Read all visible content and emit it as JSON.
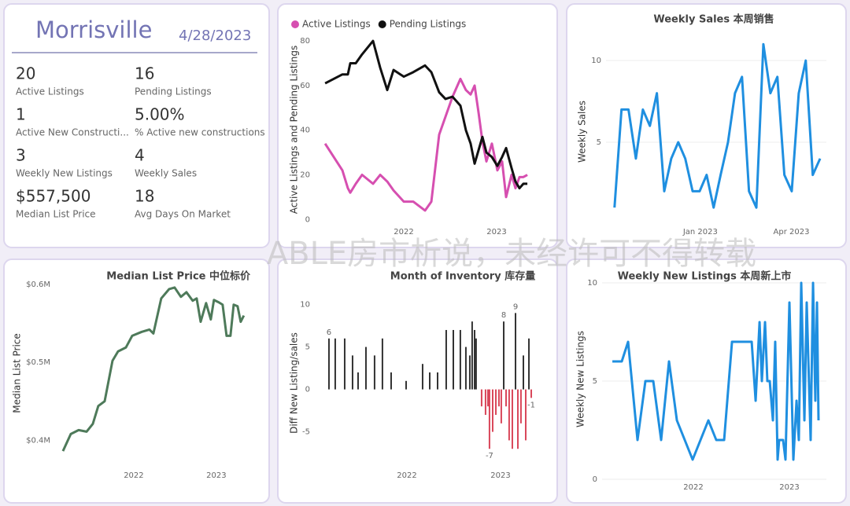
{
  "header": {
    "title": "Morrisville",
    "date": "4/28/2023"
  },
  "kpis": [
    {
      "value": "20",
      "label": "Active Listings"
    },
    {
      "value": "16",
      "label": "Pending Listings"
    },
    {
      "value": "1",
      "label": "Active New Constructi..."
    },
    {
      "value": "5.00%",
      "label": "% Active new constructions"
    },
    {
      "value": "3",
      "label": "Weekly New Listings"
    },
    {
      "value": "4",
      "label": "Weekly Sales"
    },
    {
      "value": "$557,500",
      "label": "Median List Price"
    },
    {
      "value": "18",
      "label": "Avg Days On Market"
    }
  ],
  "watermark": "ABLE房市析说，未经许可不得转载",
  "chart_data": [
    {
      "type": "line",
      "y_label": "Active Listings and Pending Listings",
      "legend": "top-left",
      "grid": false,
      "x": [
        2021.153,
        2021.339,
        2021.398,
        2021.424,
        2021.483,
        2021.551,
        2021.669,
        2021.746,
        2021.822,
        2021.89,
        2022.0,
        2022.102,
        2022.229,
        2022.297,
        2022.381,
        2022.449,
        2022.525,
        2022.61,
        2022.669,
        2022.72,
        2022.763,
        2022.805,
        2022.847,
        2022.89,
        2022.949,
        2023.008,
        2023.059,
        2023.102,
        2023.161,
        2023.203,
        2023.246,
        2023.288,
        2023.331
      ],
      "series": [
        {
          "name": "Active Listings",
          "color": "#d64fb0",
          "values": [
            34,
            22,
            14,
            12,
            16,
            20,
            16,
            20,
            17,
            13,
            8,
            8,
            4,
            8,
            38,
            46,
            55,
            63,
            58,
            56,
            60,
            48,
            35,
            26,
            34,
            22,
            26,
            10,
            20,
            14,
            19,
            19,
            20
          ]
        },
        {
          "name": "Pending Listings",
          "color": "#111111",
          "values": [
            61,
            65,
            65,
            70,
            70,
            74,
            80,
            68,
            58,
            67,
            64,
            66,
            69,
            66,
            57,
            54,
            55,
            51,
            40,
            34,
            25,
            31,
            37,
            30,
            28,
            24,
            28,
            32,
            23,
            17,
            14,
            16,
            16
          ]
        }
      ],
      "xlim": [
        2021.042,
        2023.5
      ],
      "xticks": [
        2022,
        2023
      ],
      "ylim": [
        -2,
        82.5
      ],
      "yticks": [
        0,
        20,
        40,
        60,
        80
      ]
    },
    {
      "type": "line",
      "title": "Weekly Sales 本周销售",
      "y_label": "Weekly Sales",
      "color": "#1f8fe0",
      "grid": true,
      "x": [
        2022.767,
        2022.786,
        2022.805,
        2022.825,
        2022.844,
        2022.863,
        2022.882,
        2022.902,
        2022.921,
        2022.94,
        2022.959,
        2022.979,
        2022.998,
        2023.017,
        2023.036,
        2023.055,
        2023.075,
        2023.094,
        2023.113,
        2023.132,
        2023.152,
        2023.171,
        2023.19,
        2023.209,
        2023.228,
        2023.248,
        2023.267,
        2023.286,
        2023.305,
        2023.325
      ],
      "values": [
        1,
        7,
        7,
        4,
        7,
        6,
        8,
        2,
        4,
        5,
        4,
        2,
        2,
        3,
        1,
        3,
        5,
        8,
        9,
        2,
        1,
        11,
        8,
        9,
        3,
        2,
        8,
        10,
        3,
        4
      ],
      "xlim": [
        2022.744,
        2023.342
      ],
      "xticks": [
        {
          "value": 2023,
          "label": "Jan 2023"
        },
        {
          "value": 2023.247,
          "label": "Apr 2023"
        }
      ],
      "ylim": [
        0,
        11.3
      ],
      "yticks": [
        5,
        10
      ]
    },
    {
      "type": "line",
      "title": "Median List Price  中位标价",
      "y_label": "Median List Price",
      "color": "#4e7a5a",
      "grid": false,
      "x": [
        2021.143,
        2021.238,
        2021.333,
        2021.429,
        2021.505,
        2021.571,
        2021.648,
        2021.743,
        2021.81,
        2021.905,
        2021.981,
        2022.095,
        2022.19,
        2022.238,
        2022.333,
        2022.429,
        2022.495,
        2022.571,
        2022.638,
        2022.714,
        2022.762,
        2022.81,
        2022.876,
        2022.933,
        2022.971,
        2023.029,
        2023.076,
        2023.124,
        2023.171,
        2023.21,
        2023.257,
        2023.295,
        2023.333
      ],
      "values": [
        386000,
        408000,
        413000,
        411000,
        421000,
        444000,
        450000,
        502000,
        514000,
        519000,
        534000,
        539000,
        542000,
        537000,
        582000,
        594000,
        596000,
        584000,
        590000,
        579000,
        582000,
        552000,
        576000,
        555000,
        580000,
        577000,
        574000,
        534000,
        534000,
        574000,
        572000,
        552000,
        560000
      ],
      "xlim": [
        2021.048,
        2023.43
      ],
      "xticks": [
        2022,
        2023
      ],
      "ylim": [
        365000,
        607000
      ],
      "yticks": [
        {
          "value": 400000,
          "label": "$0.4M"
        },
        {
          "value": 500000,
          "label": "$0.5M"
        },
        {
          "value": 600000,
          "label": "$0.6M"
        }
      ]
    },
    {
      "type": "bar",
      "title": "Month of Inventory 库存量",
      "y_label": "Diff New Listing/sales",
      "color": "#333333",
      "negative_color": "#d9475a",
      "grid": false,
      "x": [
        2021.168,
        2021.235,
        2021.336,
        2021.42,
        2021.479,
        2021.563,
        2021.655,
        2021.739,
        2021.832,
        2021.992,
        2022.168,
        2022.244,
        2022.328,
        2022.42,
        2022.496,
        2022.571,
        2022.63,
        2022.672,
        2022.697,
        2022.723,
        2022.739,
        2022.798,
        2022.84,
        2022.866,
        2022.882,
        2022.916,
        2022.95,
        2022.983,
        2023.008,
        2023.034,
        2023.059,
        2023.092,
        2023.126,
        2023.16,
        2023.185,
        2023.218,
        2023.244,
        2023.269,
        2023.303,
        2023.328
      ],
      "values": [
        6,
        6,
        6,
        4,
        2,
        5,
        4,
        6,
        2,
        1,
        3,
        2,
        2,
        7,
        7,
        7,
        5,
        4,
        8,
        7,
        6,
        -2,
        -3,
        -2,
        -7,
        -5,
        -3,
        -2,
        -4,
        8,
        -2,
        -6,
        -7,
        9,
        -7,
        -4,
        4,
        -6,
        6,
        -1
      ],
      "value_labels": [
        "6",
        null,
        null,
        null,
        null,
        null,
        null,
        null,
        null,
        null,
        null,
        null,
        null,
        null,
        null,
        null,
        null,
        null,
        null,
        null,
        null,
        null,
        null,
        null,
        "-7",
        null,
        null,
        null,
        null,
        "8",
        null,
        null,
        null,
        "9",
        null,
        null,
        null,
        null,
        null,
        "-1"
      ],
      "xlim": [
        2021.017,
        2023.454
      ],
      "xticks": [
        2022,
        2023
      ],
      "ylim": [
        -9.2,
        10.7
      ],
      "yticks": [
        -5,
        0,
        5,
        10
      ]
    },
    {
      "type": "line",
      "title": "Weekly New Listings  本周新上市",
      "y_label": "Weekly New Listings",
      "color": "#1f8fe0",
      "grid": true,
      "x": [
        2021.156,
        2021.254,
        2021.32,
        2021.418,
        2021.5,
        2021.582,
        2021.664,
        2021.746,
        2021.828,
        2021.992,
        2022.156,
        2022.238,
        2022.32,
        2022.402,
        2022.525,
        2022.607,
        2022.648,
        2022.689,
        2022.713,
        2022.746,
        2022.77,
        2022.795,
        2022.828,
        2022.852,
        2022.877,
        2022.893,
        2022.934,
        2022.959,
        2023.0,
        2023.041,
        2023.074,
        2023.098,
        2023.123,
        2023.156,
        2023.18,
        2023.221,
        2023.246,
        2023.27,
        2023.287,
        2023.303
      ],
      "values": [
        6,
        6,
        7,
        2,
        5,
        5,
        2,
        6,
        3,
        1,
        3,
        2,
        2,
        7,
        7,
        7,
        4,
        8,
        5,
        8,
        5,
        5,
        3,
        7,
        1,
        2,
        2,
        1,
        9,
        1,
        4,
        2,
        10,
        3,
        9,
        2,
        10,
        4,
        9,
        3
      ],
      "xlim": [
        2021.049,
        2023.385
      ],
      "xticks": [
        2022,
        2023
      ],
      "ylim": [
        0,
        10.2
      ],
      "yticks": [
        0,
        5,
        10
      ]
    }
  ]
}
